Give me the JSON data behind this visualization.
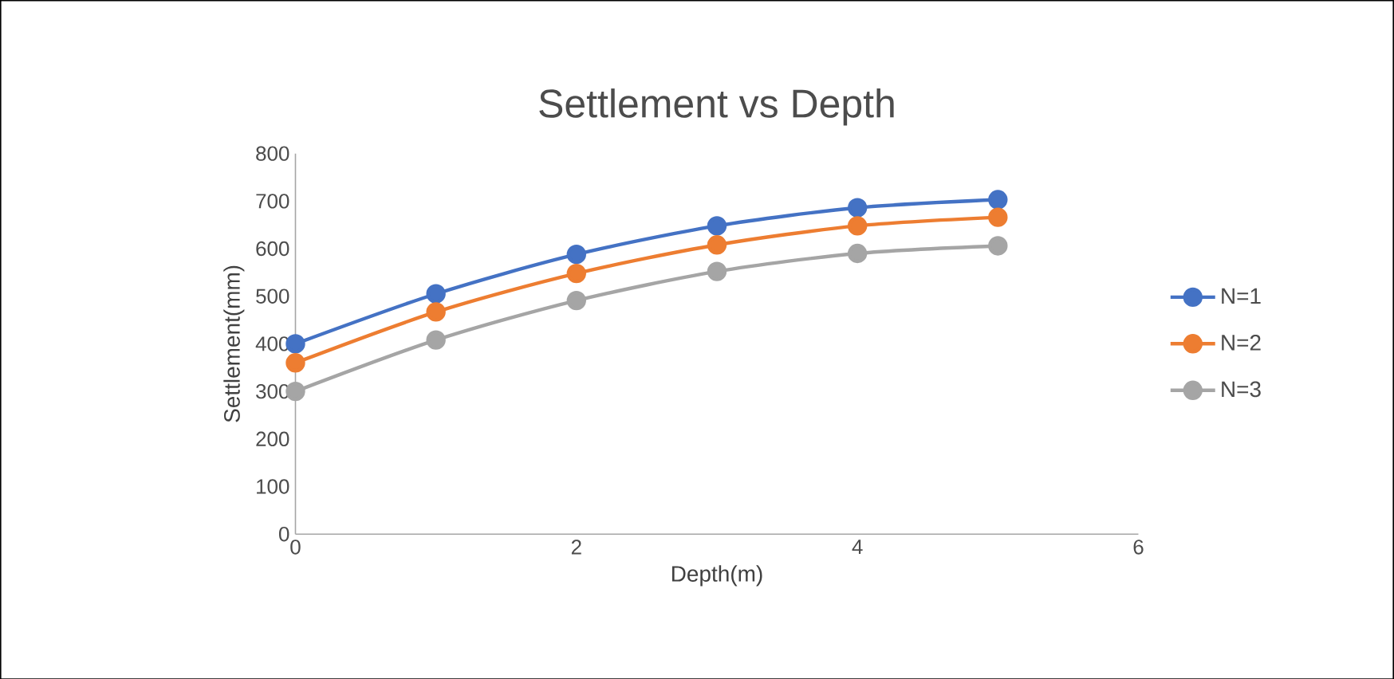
{
  "chart_data": {
    "type": "line",
    "title": "Settlement vs Depth",
    "xlabel": "Depth(m)",
    "ylabel": "Settlement(mm)",
    "x": [
      0,
      1,
      2,
      3,
      4,
      5
    ],
    "series": [
      {
        "name": "N=1",
        "color": "#4472c4",
        "values": [
          400,
          505,
          588,
          648,
          686,
          703
        ]
      },
      {
        "name": "N=2",
        "color": "#ed7d31",
        "values": [
          360,
          467,
          548,
          608,
          648,
          666
        ]
      },
      {
        "name": "N=3",
        "color": "#a5a5a5",
        "values": [
          300,
          408,
          491,
          552,
          590,
          606
        ]
      }
    ],
    "xlim": [
      0,
      6
    ],
    "xticks": [
      0,
      2,
      4,
      6
    ],
    "ylim": [
      0,
      800
    ],
    "yticks": [
      0,
      100,
      200,
      300,
      400,
      500,
      600,
      700,
      800
    ],
    "grid": false,
    "legend": "right",
    "marker": "circle",
    "line_style": "solid"
  }
}
